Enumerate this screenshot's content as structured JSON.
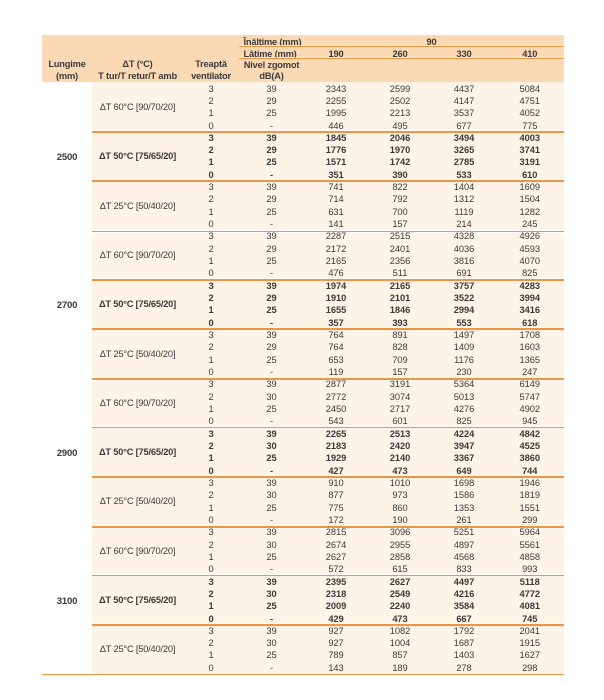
{
  "colors": {
    "accent": "#ef9344",
    "header_bg": "#fbd9b4",
    "row_bg": "#fdf3e6",
    "text": "#3b3b3b",
    "page_bg": "#ffffff"
  },
  "header": {
    "inaltime_label": "Înălțime (mm)",
    "inaltime_value": "90",
    "latime_label": "Lățime (mm)",
    "width_columns": [
      "190",
      "260",
      "330",
      "410"
    ],
    "lungime": [
      "Lungime",
      "(mm)"
    ],
    "delta_t": [
      "ΔT (°C)",
      "T tur/T retur/T amb"
    ],
    "treapta": [
      "Treaptă",
      "ventilator"
    ],
    "nivel_zgomot": [
      "Nivel zgomot",
      "dB(A)"
    ]
  },
  "groups": [
    {
      "length": "2500",
      "subgroups": [
        {
          "label": "ΔT 60°C [90/70/20]",
          "bold": false,
          "rows": [
            {
              "step": "3",
              "noise": "39",
              "values": [
                "2343",
                "2599",
                "4437",
                "5084"
              ]
            },
            {
              "step": "2",
              "noise": "29",
              "values": [
                "2255",
                "2502",
                "4147",
                "4751"
              ]
            },
            {
              "step": "1",
              "noise": "25",
              "values": [
                "1995",
                "2213",
                "3537",
                "4052"
              ]
            },
            {
              "step": "0",
              "noise": "-",
              "values": [
                "446",
                "495",
                "677",
                "775"
              ]
            }
          ]
        },
        {
          "label": "ΔT 50°C [75/65/20]",
          "bold": true,
          "rows": [
            {
              "step": "3",
              "noise": "39",
              "values": [
                "1845",
                "2046",
                "3494",
                "4003"
              ]
            },
            {
              "step": "2",
              "noise": "29",
              "values": [
                "1776",
                "1970",
                "3265",
                "3741"
              ]
            },
            {
              "step": "1",
              "noise": "25",
              "values": [
                "1571",
                "1742",
                "2785",
                "3191"
              ]
            },
            {
              "step": "0",
              "noise": "-",
              "values": [
                "351",
                "390",
                "533",
                "610"
              ]
            }
          ]
        },
        {
          "label": "ΔT 25°C [50/40/20]",
          "bold": false,
          "rows": [
            {
              "step": "3",
              "noise": "39",
              "values": [
                "741",
                "822",
                "1404",
                "1609"
              ]
            },
            {
              "step": "2",
              "noise": "29",
              "values": [
                "714",
                "792",
                "1312",
                "1504"
              ]
            },
            {
              "step": "1",
              "noise": "25",
              "values": [
                "631",
                "700",
                "1119",
                "1282"
              ]
            },
            {
              "step": "0",
              "noise": "-",
              "values": [
                "141",
                "157",
                "214",
                "245"
              ]
            }
          ]
        }
      ]
    },
    {
      "length": "2700",
      "subgroups": [
        {
          "label": "ΔT 60°C [90/70/20]",
          "bold": false,
          "rows": [
            {
              "step": "3",
              "noise": "39",
              "values": [
                "2287",
                "2515",
                "4328",
                "4926"
              ]
            },
            {
              "step": "2",
              "noise": "29",
              "values": [
                "2172",
                "2401",
                "4036",
                "4593"
              ]
            },
            {
              "step": "1",
              "noise": "25",
              "values": [
                "2165",
                "2356",
                "3816",
                "4070"
              ]
            },
            {
              "step": "0",
              "noise": "-",
              "values": [
                "476",
                "511",
                "691",
                "825"
              ]
            }
          ]
        },
        {
          "label": "ΔT 50°C [75/65/20]",
          "bold": true,
          "rows": [
            {
              "step": "3",
              "noise": "39",
              "values": [
                "1974",
                "2165",
                "3757",
                "4283"
              ]
            },
            {
              "step": "2",
              "noise": "29",
              "values": [
                "1910",
                "2101",
                "3522",
                "3994"
              ]
            },
            {
              "step": "1",
              "noise": "25",
              "values": [
                "1655",
                "1846",
                "2994",
                "3416"
              ]
            },
            {
              "step": "0",
              "noise": "-",
              "values": [
                "357",
                "393",
                "553",
                "618"
              ]
            }
          ]
        },
        {
          "label": "ΔT 25°C [50/40/20]",
          "bold": false,
          "rows": [
            {
              "step": "3",
              "noise": "39",
              "values": [
                "764",
                "891",
                "1497",
                "1708"
              ]
            },
            {
              "step": "2",
              "noise": "29",
              "values": [
                "764",
                "828",
                "1409",
                "1603"
              ]
            },
            {
              "step": "1",
              "noise": "25",
              "values": [
                "653",
                "709",
                "1176",
                "1365"
              ]
            },
            {
              "step": "0",
              "noise": "-",
              "values": [
                "119",
                "157",
                "230",
                "247"
              ]
            }
          ]
        }
      ]
    },
    {
      "length": "2900",
      "subgroups": [
        {
          "label": "ΔT 60°C [90/70/20]",
          "bold": false,
          "rows": [
            {
              "step": "3",
              "noise": "39",
              "values": [
                "2877",
                "3191",
                "5364",
                "6149"
              ]
            },
            {
              "step": "2",
              "noise": "30",
              "values": [
                "2772",
                "3074",
                "5013",
                "5747"
              ]
            },
            {
              "step": "1",
              "noise": "25",
              "values": [
                "2450",
                "2717",
                "4276",
                "4902"
              ]
            },
            {
              "step": "0",
              "noise": "-",
              "values": [
                "543",
                "601",
                "825",
                "945"
              ]
            }
          ]
        },
        {
          "label": "ΔT 50°C [75/65/20]",
          "bold": true,
          "rows": [
            {
              "step": "3",
              "noise": "39",
              "values": [
                "2265",
                "2513",
                "4224",
                "4842"
              ]
            },
            {
              "step": "2",
              "noise": "30",
              "values": [
                "2183",
                "2420",
                "3947",
                "4525"
              ]
            },
            {
              "step": "1",
              "noise": "25",
              "values": [
                "1929",
                "2140",
                "3367",
                "3860"
              ]
            },
            {
              "step": "0",
              "noise": "-",
              "values": [
                "427",
                "473",
                "649",
                "744"
              ]
            }
          ]
        },
        {
          "label": "ΔT 25°C [50/40/20]",
          "bold": false,
          "rows": [
            {
              "step": "3",
              "noise": "39",
              "values": [
                "910",
                "1010",
                "1698",
                "1946"
              ]
            },
            {
              "step": "2",
              "noise": "30",
              "values": [
                "877",
                "973",
                "1586",
                "1819"
              ]
            },
            {
              "step": "1",
              "noise": "25",
              "values": [
                "775",
                "860",
                "1353",
                "1551"
              ]
            },
            {
              "step": "0",
              "noise": "-",
              "values": [
                "172",
                "190",
                "261",
                "299"
              ]
            }
          ]
        }
      ]
    },
    {
      "length": "3100",
      "subgroups": [
        {
          "label": "ΔT 60°C [90/70/20]",
          "bold": false,
          "rows": [
            {
              "step": "3",
              "noise": "39",
              "values": [
                "2815",
                "3096",
                "5251",
                "5964"
              ]
            },
            {
              "step": "2",
              "noise": "30",
              "values": [
                "2674",
                "2955",
                "4897",
                "5561"
              ]
            },
            {
              "step": "1",
              "noise": "25",
              "values": [
                "2627",
                "2858",
                "4568",
                "4858"
              ]
            },
            {
              "step": "0",
              "noise": "-",
              "values": [
                "572",
                "615",
                "833",
                "993"
              ]
            }
          ]
        },
        {
          "label": "ΔT 50°C [75/65/20]",
          "bold": true,
          "rows": [
            {
              "step": "3",
              "noise": "39",
              "values": [
                "2395",
                "2627",
                "4497",
                "5118"
              ]
            },
            {
              "step": "2",
              "noise": "30",
              "values": [
                "2318",
                "2549",
                "4216",
                "4772"
              ]
            },
            {
              "step": "1",
              "noise": "25",
              "values": [
                "2009",
                "2240",
                "3584",
                "4081"
              ]
            },
            {
              "step": "0",
              "noise": "-",
              "values": [
                "429",
                "473",
                "667",
                "745"
              ]
            }
          ]
        },
        {
          "label": "ΔT 25°C [50/40/20]",
          "bold": false,
          "rows": [
            {
              "step": "3",
              "noise": "39",
              "values": [
                "927",
                "1082",
                "1792",
                "2041"
              ]
            },
            {
              "step": "2",
              "noise": "30",
              "values": [
                "927",
                "1004",
                "1687",
                "1915"
              ]
            },
            {
              "step": "1",
              "noise": "25",
              "values": [
                "789",
                "857",
                "1403",
                "1627"
              ]
            },
            {
              "step": "0",
              "noise": "-",
              "values": [
                "143",
                "189",
                "278",
                "298"
              ]
            }
          ]
        }
      ]
    }
  ]
}
